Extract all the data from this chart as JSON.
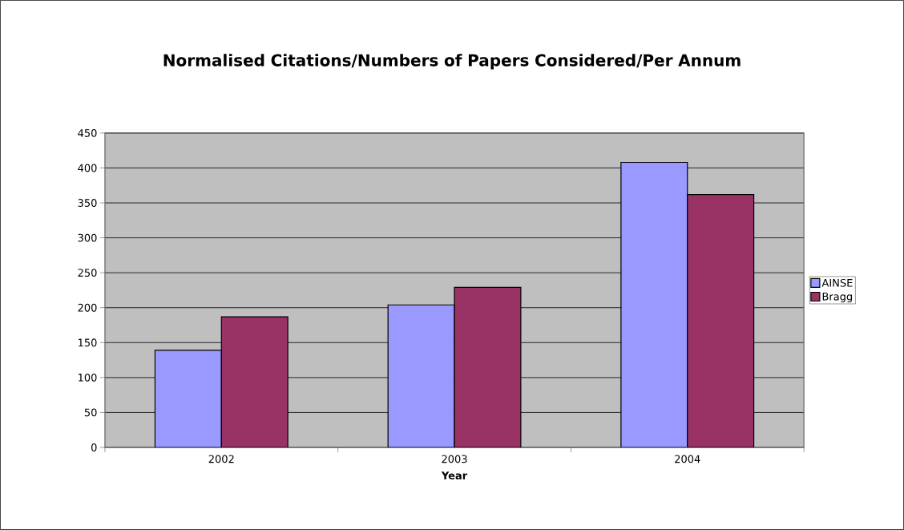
{
  "chart_data": {
    "type": "bar",
    "title": "Normalised Citations/Numbers of Papers Considered/Per Annum",
    "xlabel": "Year",
    "categories": [
      "2002",
      "2003",
      "2004"
    ],
    "series": [
      {
        "name": "AINSE",
        "color": "#9999ff",
        "values": [
          139,
          204,
          408
        ]
      },
      {
        "name": "Bragg",
        "color": "#993366",
        "values": [
          187,
          229,
          362
        ]
      }
    ],
    "ylim": [
      0,
      450
    ],
    "yticks": [
      0,
      50,
      100,
      150,
      200,
      250,
      300,
      350,
      400,
      450
    ],
    "grid": "y",
    "legend": "right"
  }
}
